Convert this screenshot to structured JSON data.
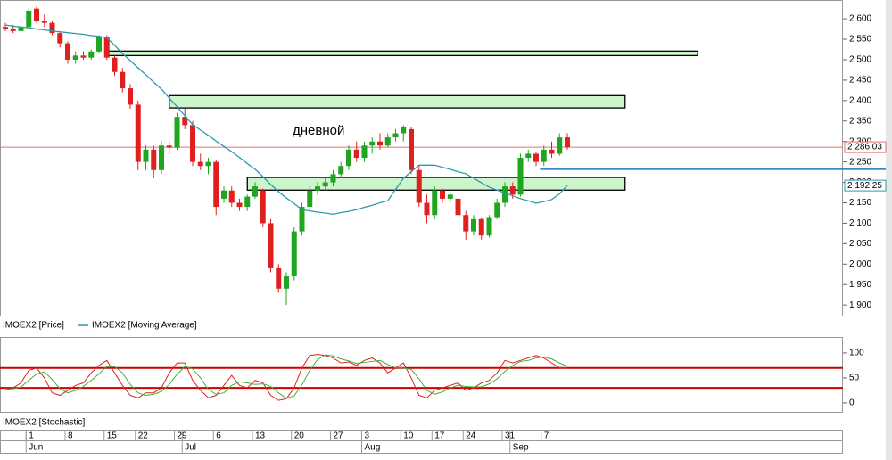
{
  "chart_data": [
    {
      "type": "candlestick",
      "name": "IMOEX2 [Price]",
      "categories": [
        null,
        null,
        null,
        "1",
        null,
        null,
        null,
        null,
        "8",
        null,
        null,
        null,
        null,
        "15",
        null,
        null,
        null,
        "22",
        null,
        null,
        null,
        null,
        "29",
        null,
        null,
        null,
        null,
        "6",
        null,
        null,
        null,
        null,
        "13",
        null,
        null,
        null,
        null,
        "20",
        null,
        null,
        null,
        null,
        "27",
        null,
        null,
        null,
        "3",
        null,
        null,
        null,
        null,
        "10",
        null,
        null,
        null,
        "17",
        null,
        null,
        null,
        "24",
        null,
        null,
        null,
        null,
        "31",
        null,
        null,
        null,
        null,
        "7",
        null,
        null,
        null
      ],
      "months": [
        null,
        null,
        null,
        "Jun",
        null,
        null,
        null,
        null,
        null,
        null,
        null,
        null,
        null,
        null,
        null,
        null,
        null,
        null,
        null,
        null,
        null,
        null,
        null,
        "Jul",
        null,
        null,
        null,
        null,
        null,
        null,
        null,
        null,
        null,
        null,
        null,
        null,
        null,
        null,
        null,
        null,
        null,
        null,
        null,
        null,
        null,
        null,
        "Aug",
        null,
        null,
        null,
        null,
        null,
        null,
        null,
        null,
        null,
        null,
        null,
        null,
        null,
        null,
        null,
        null,
        null,
        null,
        "Sep",
        null,
        null,
        null,
        null,
        null,
        null,
        null
      ],
      "open": [
        2580,
        2575,
        2570,
        2580,
        2625,
        2595,
        2590,
        2565,
        2540,
        2500,
        2510,
        2505,
        2520,
        2555,
        2505,
        2470,
        2430,
        2390,
        2250,
        2280,
        2230,
        2290,
        2285,
        2360,
        2340,
        2250,
        2240,
        2250,
        2160,
        2180,
        2150,
        2140,
        2165,
        2180,
        2100,
        1990,
        1940,
        1970,
        2080,
        2140,
        2180,
        2190,
        2200,
        2220,
        2240,
        2280,
        2260,
        2290,
        2300,
        2290,
        2310,
        2320,
        2330,
        2230,
        2150,
        2120,
        2180,
        2160,
        2160,
        2120,
        2080,
        2110,
        2070,
        2115,
        2150,
        2190,
        2170,
        2260,
        2270,
        2250,
        2280,
        2270,
        2310
      ],
      "high": [
        2590,
        2585,
        2585,
        2625,
        2630,
        2610,
        2595,
        2570,
        2545,
        2520,
        2520,
        2525,
        2560,
        2560,
        2510,
        2480,
        2440,
        2400,
        2290,
        2290,
        2300,
        2300,
        2370,
        2380,
        2350,
        2270,
        2260,
        2255,
        2190,
        2190,
        2160,
        2170,
        2200,
        2185,
        2110,
        2000,
        1980,
        2090,
        2150,
        2190,
        2200,
        2210,
        2230,
        2250,
        2290,
        2300,
        2300,
        2310,
        2320,
        2320,
        2330,
        2340,
        2335,
        2240,
        2170,
        2190,
        2185,
        2175,
        2165,
        2130,
        2120,
        2115,
        2120,
        2160,
        2200,
        2200,
        2270,
        2280,
        2275,
        2290,
        2300,
        2320,
        2320
      ],
      "low": [
        2570,
        2565,
        2560,
        2575,
        2590,
        2580,
        2560,
        2530,
        2490,
        2490,
        2500,
        2500,
        2515,
        2500,
        2460,
        2420,
        2380,
        2230,
        2230,
        2210,
        2220,
        2270,
        2280,
        2330,
        2240,
        2230,
        2220,
        2120,
        2150,
        2140,
        2130,
        2130,
        2160,
        2090,
        1980,
        1930,
        1900,
        1960,
        2070,
        2130,
        2170,
        2180,
        2190,
        2210,
        2230,
        2250,
        2250,
        2270,
        2280,
        2285,
        2300,
        2300,
        2220,
        2140,
        2100,
        2110,
        2150,
        2150,
        2110,
        2060,
        2070,
        2060,
        2065,
        2110,
        2140,
        2160,
        2165,
        2250,
        2240,
        2240,
        2260,
        2265,
        2280
      ],
      "close": [
        2575,
        2570,
        2580,
        2620,
        2595,
        2590,
        2565,
        2540,
        2500,
        2510,
        2505,
        2520,
        2555,
        2505,
        2470,
        2430,
        2390,
        2250,
        2280,
        2230,
        2290,
        2285,
        2360,
        2340,
        2250,
        2240,
        2250,
        2140,
        2180,
        2150,
        2140,
        2165,
        2190,
        2100,
        1990,
        1940,
        1970,
        2080,
        2140,
        2180,
        2190,
        2200,
        2220,
        2240,
        2280,
        2260,
        2290,
        2300,
        2290,
        2310,
        2320,
        2335,
        2230,
        2150,
        2120,
        2180,
        2160,
        2170,
        2120,
        2080,
        2110,
        2070,
        2115,
        2150,
        2190,
        2170,
        2260,
        2270,
        2250,
        2280,
        2270,
        2310,
        2286.03
      ],
      "up_color": "#1fa51f",
      "down_color": "#e0201f",
      "moving_average": {
        "name": "IMOEX2 [Moving Average]",
        "color": "#2a9bb0",
        "last_value_label": "2 192,25",
        "values": [
          2585,
          2582,
          2580,
          2578,
          2575,
          2573,
          2570,
          2568,
          2566,
          2564,
          2562,
          2559,
          2557,
          2554,
          2535,
          2515,
          2498,
          2480,
          2463,
          2445,
          2428,
          2406,
          2385,
          2363,
          2341,
          2328,
          2315,
          2301,
          2288,
          2275,
          2261,
          2246,
          2232,
          2214,
          2195,
          2177,
          2162,
          2148,
          2133,
          2130,
          2127,
          2125,
          2122,
          2126,
          2129,
          2133,
          2139,
          2144,
          2150,
          2155,
          2183,
          2210,
          2226,
          2242,
          2242,
          2242,
          2237,
          2232,
          2226,
          2221,
          2210,
          2199,
          2188,
          2181,
          2174,
          2167,
          2160,
          2155,
          2149,
          2153,
          2158,
          2172,
          2192.25
        ]
      },
      "last_price": {
        "value": 2286.03,
        "value_label": "2 286,03",
        "color": "#e07070"
      },
      "level_line": {
        "value": 2232,
        "x_from": 68.5,
        "color": "#1f77b4"
      },
      "zones": [
        {
          "x": [
            13,
            88.7
          ],
          "y": [
            2510,
            2521
          ]
        },
        {
          "x": [
            21,
            79.4
          ],
          "y": [
            2382,
            2412
          ]
        },
        {
          "x": [
            31,
            79.4
          ],
          "y": [
            2181,
            2212
          ]
        }
      ],
      "zone_color": "#ccf5cc",
      "annotation": "дневной",
      "ylim": [
        1872,
        2646
      ],
      "yticks": [
        {
          "value": 1900,
          "label": "1 900"
        },
        {
          "value": 1950,
          "label": "1 950"
        },
        {
          "value": 2000,
          "label": "2 000"
        },
        {
          "value": 2050,
          "label": "2 050"
        },
        {
          "value": 2100,
          "label": "2 100"
        },
        {
          "value": 2150,
          "label": "2 150"
        },
        {
          "value": 2200,
          "label": "2 200"
        },
        {
          "value": 2250,
          "label": "2 250"
        },
        {
          "value": 2300,
          "label": "2 300"
        },
        {
          "value": 2350,
          "label": "2 350"
        },
        {
          "value": 2400,
          "label": "2 400"
        },
        {
          "value": 2450,
          "label": "2 450"
        },
        {
          "value": 2500,
          "label": "2 500"
        },
        {
          "value": 2550,
          "label": "2 550"
        },
        {
          "value": 2600,
          "label": "2 600"
        }
      ]
    },
    {
      "type": "line",
      "title": "IMOEX2 [Stochastic]",
      "series": [
        {
          "color": "#e0201f",
          "values": [
            25,
            30,
            40,
            65,
            70,
            50,
            20,
            15,
            25,
            35,
            40,
            60,
            75,
            85,
            60,
            35,
            15,
            10,
            20,
            20,
            30,
            60,
            80,
            80,
            45,
            25,
            10,
            15,
            35,
            55,
            35,
            30,
            45,
            40,
            15,
            5,
            8,
            30,
            70,
            95,
            97,
            95,
            90,
            80,
            82,
            75,
            85,
            90,
            80,
            60,
            70,
            80,
            50,
            15,
            10,
            25,
            30,
            35,
            40,
            25,
            30,
            40,
            45,
            60,
            85,
            80,
            85,
            90,
            95,
            90,
            80,
            70,
            70
          ]
        },
        {
          "color": "#3cb43c",
          "values": [
            28,
            28,
            32,
            45,
            58,
            62,
            47,
            28,
            20,
            25,
            33,
            45,
            58,
            73,
            73,
            60,
            37,
            20,
            15,
            17,
            23,
            37,
            57,
            73,
            68,
            50,
            27,
            17,
            20,
            35,
            42,
            40,
            37,
            38,
            33,
            20,
            9,
            14,
            36,
            65,
            87,
            96,
            94,
            88,
            84,
            79,
            81,
            83,
            85,
            77,
            70,
            70,
            67,
            48,
            25,
            17,
            22,
            30,
            35,
            33,
            32,
            32,
            38,
            48,
            63,
            75,
            83,
            85,
            90,
            92,
            88,
            80,
            73
          ]
        }
      ],
      "levels": [
        30,
        70
      ],
      "level_color": "#cc0000",
      "ylim": [
        -18,
        132
      ],
      "yticks": [
        0,
        50,
        100
      ]
    }
  ]
}
